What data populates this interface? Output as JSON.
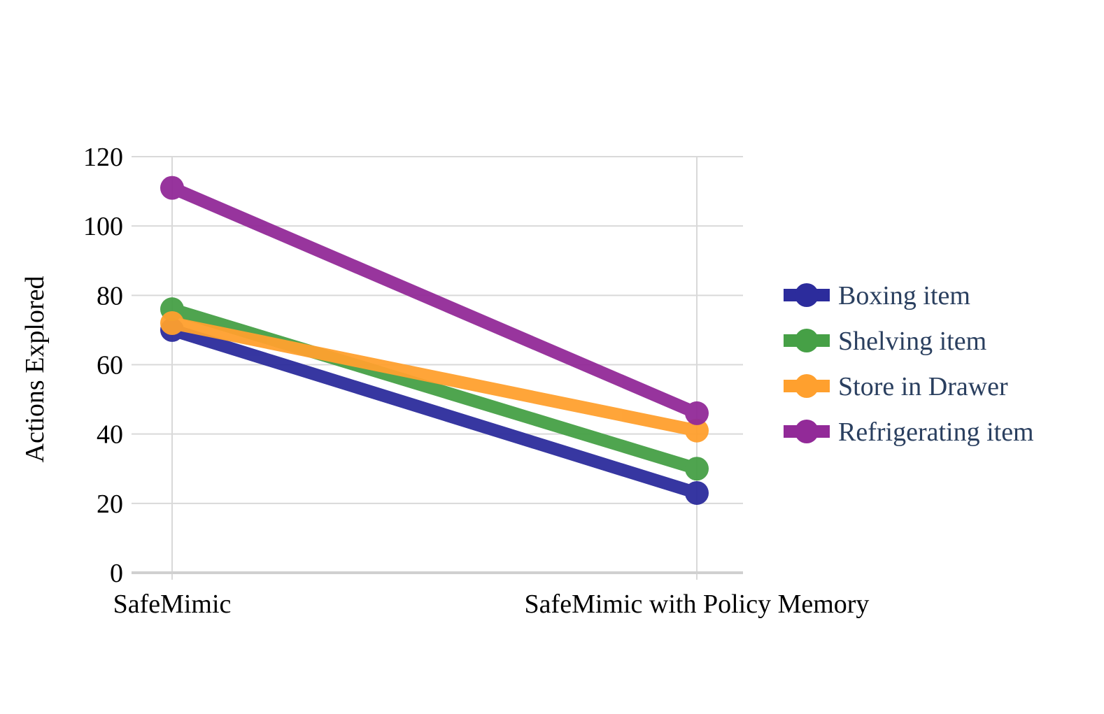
{
  "chart_data": {
    "type": "line",
    "title": "",
    "xlabel": "",
    "ylabel": "Actions Explored",
    "categories": [
      "SafeMimic",
      "SafeMimic with Policy Memory"
    ],
    "ylim": [
      0,
      120
    ],
    "yticks": [
      0,
      20,
      40,
      60,
      80,
      100,
      120
    ],
    "grid": true,
    "legend_position": "right",
    "series": [
      {
        "name": "Boxing item",
        "values": [
          70,
          23
        ],
        "color": "#2c2c9c"
      },
      {
        "name": "Shelving item",
        "values": [
          76,
          30
        ],
        "color": "#46a046"
      },
      {
        "name": "Store in Drawer",
        "values": [
          72,
          41
        ],
        "color": "#ffa02e"
      },
      {
        "name": "Refrigerating item",
        "values": [
          111,
          46
        ],
        "color": "#922a98"
      }
    ]
  }
}
